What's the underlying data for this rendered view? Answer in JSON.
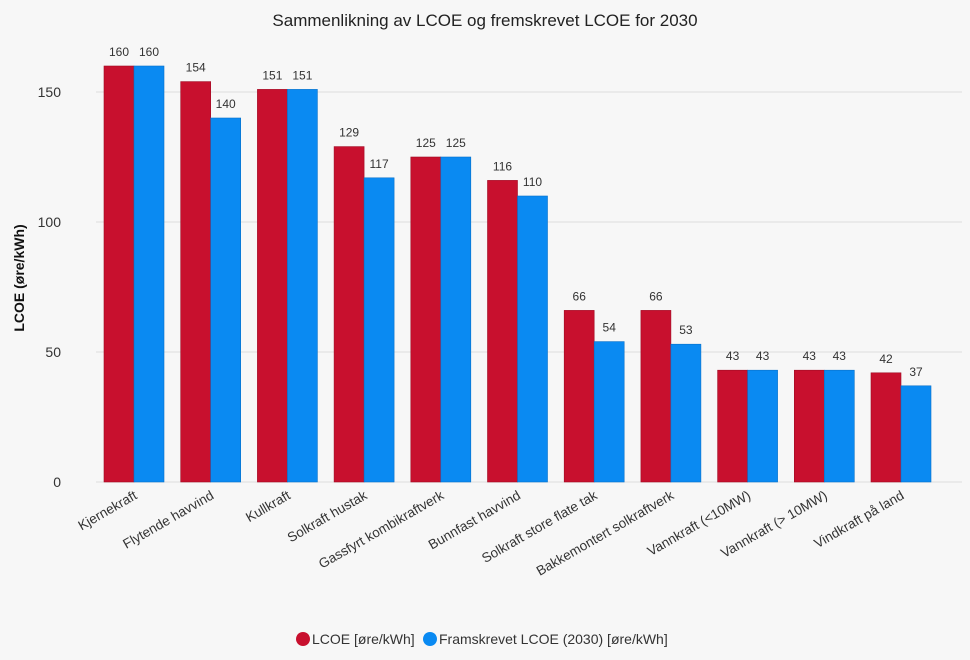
{
  "chart_data": {
    "type": "bar",
    "title": "Sammenlikning av LCOE og fremskrevet LCOE for 2030",
    "xlabel": "",
    "ylabel": "LCOE (øre/kWh)",
    "ylim": [
      0,
      170
    ],
    "yticks": [
      0,
      50,
      100,
      150
    ],
    "grid": true,
    "legend_position": "bottom",
    "categories": [
      "Kjernekraft",
      "Flytende havvind",
      "Kullkraft",
      "Solkraft hustak",
      "Gassfyrt kombikraftverk",
      "Bunnfast havvind",
      "Solkraft store flate tak",
      "Bakkemontert solkraftverk",
      "Vannkraft (<10MW)",
      "Vannkraft (> 10MW)",
      "Vindkraft på land"
    ],
    "series": [
      {
        "name": "LCOE [øre/kWh]",
        "color": "#c8102e",
        "values": [
          160,
          154,
          151,
          129,
          125,
          116,
          66,
          66,
          43,
          43,
          42
        ]
      },
      {
        "name": "Framskrevet LCOE (2030) [øre/kWh]",
        "color": "#0a8af2",
        "values": [
          160,
          140,
          151,
          117,
          125,
          110,
          54,
          53,
          43,
          43,
          37
        ]
      }
    ]
  }
}
